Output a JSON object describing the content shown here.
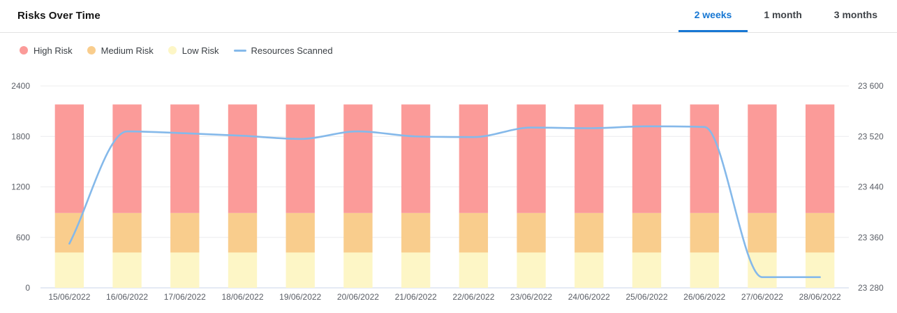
{
  "header": {
    "title": "Risks Over Time",
    "tabs": [
      {
        "label": "2 weeks",
        "active": true
      },
      {
        "label": "1 month",
        "active": false
      },
      {
        "label": "3 months",
        "active": false
      }
    ]
  },
  "legend": [
    {
      "label": "High Risk",
      "marker": "circle",
      "color": "#fb9b99"
    },
    {
      "label": "Medium Risk",
      "marker": "circle",
      "color": "#f9cd8d"
    },
    {
      "label": "Low Risk",
      "marker": "circle",
      "color": "#fdf6c6"
    },
    {
      "label": "Resources Scanned",
      "marker": "line",
      "color": "#85b9ea"
    }
  ],
  "colors": {
    "high_risk": "#fb9b99",
    "medium_risk": "#f9cd8d",
    "low_risk": "#fdf6c6",
    "line": "#85b9ea",
    "tab_active": "#1777d3",
    "gridline": "#ececee",
    "baseline": "#c9d5ea",
    "axis_label": "#5a5e66"
  },
  "chart_data": {
    "type": "bar",
    "subtype": "stacked-bars-with-line-overlay",
    "title": "Risks Over Time",
    "categories": [
      "15/06/2022",
      "16/06/2022",
      "17/06/2022",
      "18/06/2022",
      "19/06/2022",
      "20/06/2022",
      "21/06/2022",
      "22/06/2022",
      "23/06/2022",
      "24/06/2022",
      "25/06/2022",
      "26/06/2022",
      "27/06/2022",
      "28/06/2022"
    ],
    "series": [
      {
        "name": "Low Risk",
        "type": "bar",
        "stack_index": 0,
        "color": "#fdf6c6",
        "values": [
          420,
          420,
          420,
          420,
          420,
          420,
          420,
          420,
          420,
          420,
          420,
          420,
          420,
          420
        ]
      },
      {
        "name": "Medium Risk",
        "type": "bar",
        "stack_index": 1,
        "color": "#f9cd8d",
        "values": [
          470,
          470,
          470,
          470,
          470,
          470,
          470,
          470,
          470,
          470,
          470,
          470,
          470,
          470
        ]
      },
      {
        "name": "High Risk",
        "type": "bar",
        "stack_index": 2,
        "color": "#fb9b99",
        "values": [
          1290,
          1290,
          1290,
          1290,
          1290,
          1290,
          1290,
          1290,
          1290,
          1290,
          1290,
          1290,
          1290,
          1290
        ]
      },
      {
        "name": "Resources Scanned",
        "type": "line",
        "axis": "right",
        "color": "#85b9ea",
        "values": [
          23350,
          23528,
          23525,
          23521,
          23516,
          23528,
          23520,
          23519,
          23534,
          23533,
          23536,
          23535,
          23297,
          23297
        ]
      }
    ],
    "left_axis": {
      "min": 0,
      "max": 2400,
      "ticks": [
        0,
        600,
        1200,
        1800,
        2400
      ],
      "tick_labels": [
        "0",
        "600",
        "1200",
        "1800",
        "2400"
      ]
    },
    "right_axis": {
      "min": 23280,
      "max": 23600,
      "ticks": [
        23280,
        23360,
        23440,
        23520,
        23600
      ],
      "tick_labels": [
        "23 280",
        "23 360",
        "23 440",
        "23 520",
        "23 600"
      ]
    },
    "grid": "horizontal",
    "legend_position": "top-left",
    "bar_width_ratio": 0.5
  }
}
